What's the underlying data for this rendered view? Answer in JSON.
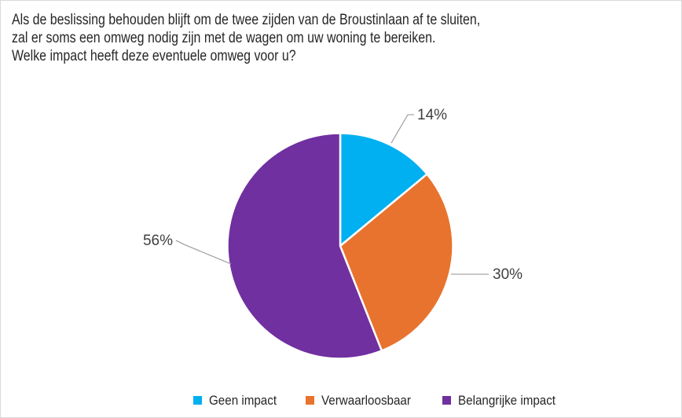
{
  "title": {
    "lines": [
      "Als de beslissing behouden blijft om de twee zijden van de Broustinlaan af te sluiten,",
      "zal er soms een omweg nodig zijn met de wagen om uw woning te bereiken.",
      "Welke impact heeft deze eventuele omweg voor u?"
    ],
    "color": "#262626"
  },
  "chart_data": {
    "type": "pie",
    "title": "Als de beslissing behouden blijft om de twee zijden van de Broustinlaan af te sluiten, zal er soms een omweg nodig zijn met de wagen om uw woning te bereiken. Welke impact heeft deze eventuele omweg voor u?",
    "categories": [
      "Geen impact",
      "Verwaarloosbaar",
      "Belangrijke impact"
    ],
    "values": [
      14,
      30,
      56
    ],
    "labels": [
      "14%",
      "30%",
      "56%"
    ],
    "colors": [
      "#00B0F0",
      "#E8732E",
      "#7030A0"
    ],
    "unit": "%",
    "start_angle_deg": 0,
    "direction": "clockwise",
    "legend_position": "bottom",
    "data_label_color": "#404040",
    "leader_line_color": "#A6A6A6",
    "slice_border_color": "#FFFFFF",
    "frame_border_color": "#D9D9D9"
  },
  "legend": {
    "items": [
      {
        "label": "Geen impact",
        "color": "#00B0F0"
      },
      {
        "label": "Verwaarloosbaar",
        "color": "#E8732E"
      },
      {
        "label": "Belangrijke impact",
        "color": "#7030A0"
      }
    ]
  }
}
